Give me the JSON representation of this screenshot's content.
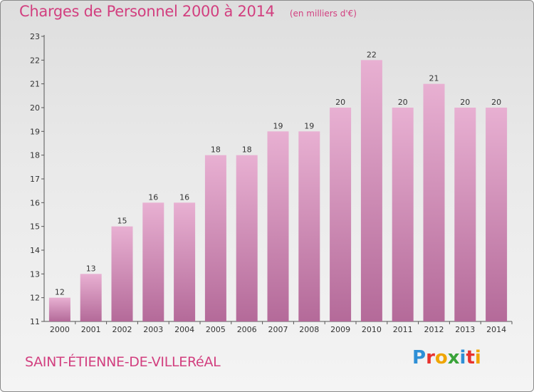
{
  "header": {
    "title": "Charges de Personnel 2000 à 2014",
    "subtitle": "(en milliers d'€)"
  },
  "footer": {
    "commune": "SAINT-ÉTIENNE-DE-VILLERéAL",
    "logo_text": "Proxiti",
    "logo_colors": [
      "#2e8fd6",
      "#e8322e",
      "#f0a500",
      "#3aa339",
      "#2e8fd6",
      "#e8322e",
      "#f0a500"
    ]
  },
  "colors": {
    "bar_top": "#e8b0d2",
    "bar_bottom": "#b46a99",
    "text_accent": "#d23f7f"
  },
  "chart_data": {
    "type": "bar",
    "categories": [
      "2000",
      "2001",
      "2002",
      "2003",
      "2004",
      "2005",
      "2006",
      "2007",
      "2008",
      "2009",
      "2010",
      "2011",
      "2012",
      "2013",
      "2014"
    ],
    "values": [
      12,
      13,
      15,
      16,
      16,
      18,
      18,
      19,
      19,
      20,
      22,
      20,
      21,
      20,
      20
    ],
    "data_labels": [
      "12",
      "13",
      "15",
      "16",
      "16",
      "18",
      "18",
      "19",
      "19",
      "20",
      "22",
      "20",
      "21",
      "20",
      "20"
    ],
    "title": "Charges de Personnel 2000 à 2014",
    "subtitle": "(en milliers d'€)",
    "xlabel": "",
    "ylabel": "",
    "ylim": [
      11,
      23
    ],
    "yticks": [
      11,
      12,
      13,
      14,
      15,
      16,
      17,
      18,
      19,
      20,
      21,
      22,
      23
    ],
    "grid": false,
    "legend": "none"
  }
}
